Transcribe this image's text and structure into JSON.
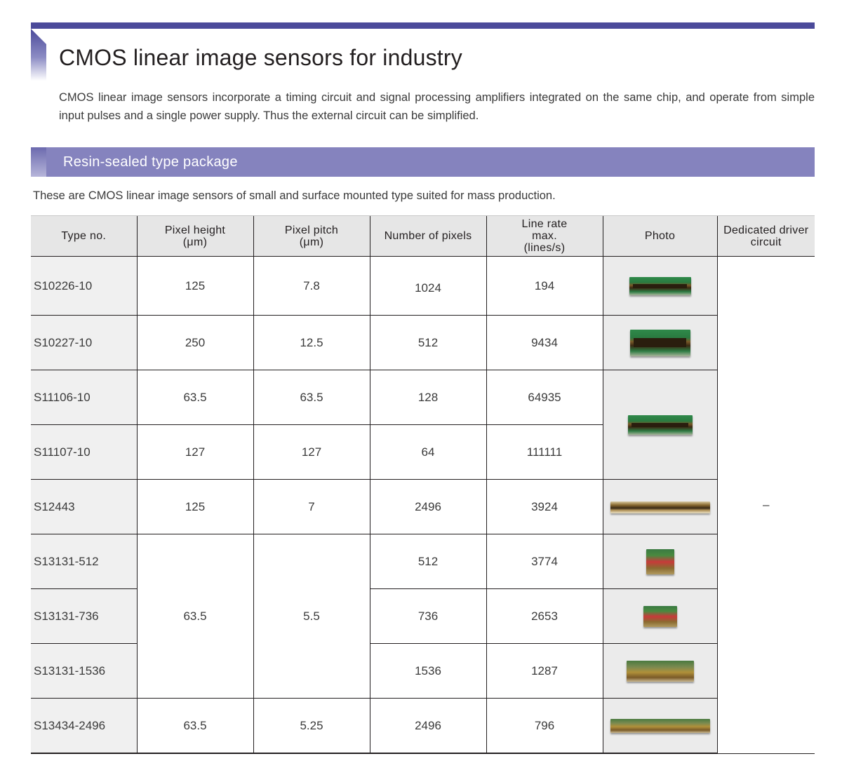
{
  "page": {
    "title": "CMOS linear image sensors for industry",
    "intro": "CMOS linear image sensors incorporate a timing circuit and signal processing amplifiers integrated on the same chip, and operate from simple input pulses and a single power supply. Thus the external circuit can be simplified."
  },
  "section": {
    "title": "Resin-sealed type package",
    "description": "These are CMOS linear image sensors of small and surface mounted type suited for mass production."
  },
  "table": {
    "headers": {
      "type_no": "Type no.",
      "pixel_height": [
        "Pixel height",
        "(μm)"
      ],
      "pixel_pitch": [
        "Pixel pitch",
        "(μm)"
      ],
      "num_pixels": "Number of pixels",
      "line_rate": [
        "Line rate",
        "max.",
        "(lines/s)"
      ],
      "photo": "Photo",
      "driver": [
        "Dedicated driver",
        "circuit"
      ]
    },
    "rows": [
      {
        "type": "S10226-10",
        "pixel_height": "125",
        "pixel_pitch": "7.8",
        "pixels": "1024",
        "line_rate": "194"
      },
      {
        "type": "S10227-10",
        "pixel_height": "250",
        "pixel_pitch": "12.5",
        "pixels": "512",
        "line_rate": "9434"
      },
      {
        "type": "S11106-10",
        "pixel_height": "63.5",
        "pixel_pitch": "63.5",
        "pixels": "128",
        "line_rate": "64935"
      },
      {
        "type": "S11107-10",
        "pixel_height": "127",
        "pixel_pitch": "127",
        "pixels": "64",
        "line_rate": "111111"
      },
      {
        "type": "S12443",
        "pixel_height": "125",
        "pixel_pitch": "7",
        "pixels": "2496",
        "line_rate": "3924"
      },
      {
        "type": "S13131-512",
        "pixel_height": "63.5",
        "pixel_pitch": "5.5",
        "pixels": "512",
        "line_rate": "3774"
      },
      {
        "type": "S13131-736",
        "pixels": "736",
        "line_rate": "2653"
      },
      {
        "type": "S13131-1536",
        "pixels": "1536",
        "line_rate": "1287"
      },
      {
        "type": "S13434-2496",
        "pixel_height": "63.5",
        "pixel_pitch": "5.25",
        "pixels": "2496",
        "line_rate": "796"
      }
    ],
    "driver_value": "–"
  }
}
